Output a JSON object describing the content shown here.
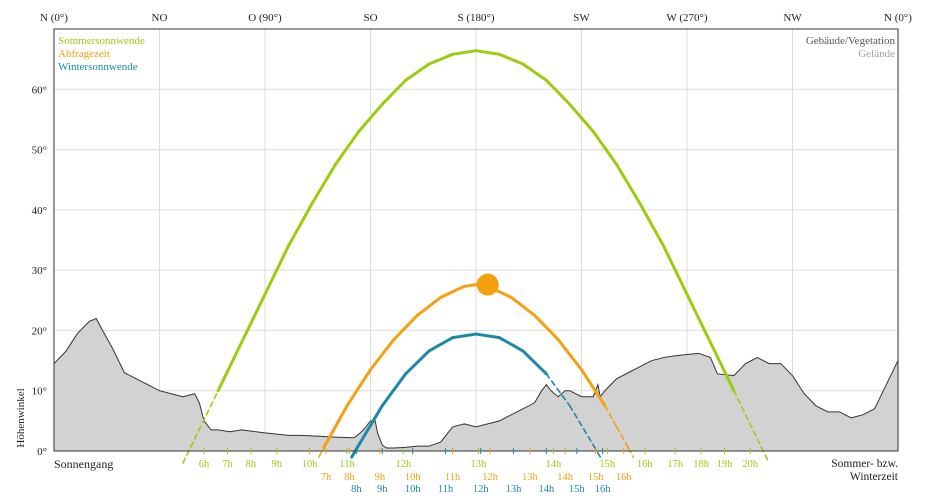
{
  "chart_data": {
    "type": "line",
    "xlabel": "",
    "ylabel": "Höhenwinkel",
    "xlim": [
      0,
      360
    ],
    "ylim": [
      0,
      70
    ],
    "y_ticks": [
      0,
      10,
      20,
      30,
      40,
      50,
      60
    ],
    "y_tick_labels": [
      "0°",
      "10°",
      "20°",
      "30°",
      "40°",
      "50°",
      "60°"
    ],
    "x_ticks": [
      0,
      45,
      90,
      135,
      180,
      225,
      270,
      315,
      360
    ],
    "x_tick_labels": [
      "N (0°)",
      "NO",
      "O (90°)",
      "SO",
      "S (180°)",
      "SW",
      "W (270°)",
      "NW",
      "N (0°)"
    ],
    "grid": true,
    "legend_left": [
      {
        "name": "Sommersonnwende",
        "color": "#9acd0e"
      },
      {
        "name": "Abfragezeit",
        "color": "#f5a00f"
      },
      {
        "name": "Wintersonnwende",
        "color": "#1a8aa8"
      }
    ],
    "legend_right": [
      {
        "name": "Gebäude/Vegetation",
        "color": "#555555"
      },
      {
        "name": "Gelände",
        "color": "#a0a0a0"
      }
    ],
    "bottom_left_label": "Sonnengang",
    "bottom_right_label": "Sommer- bzw. Winterzeit",
    "series": [
      {
        "name": "Sommersonnwende",
        "color": "#9acd0e",
        "x": [
          55,
          60,
          70,
          80,
          90,
          100,
          110,
          120,
          130,
          140,
          150,
          160,
          170,
          180,
          190,
          200,
          210,
          220,
          230,
          240,
          250,
          260,
          270,
          280,
          290,
          300,
          305
        ],
        "y": [
          -2,
          2,
          10,
          18,
          26,
          34,
          41,
          47.5,
          53,
          57.5,
          61.5,
          64.2,
          65.8,
          66.4,
          65.8,
          64.2,
          61.5,
          57.5,
          53,
          47.5,
          41,
          34,
          26,
          18,
          10,
          2,
          -2
        ],
        "dashed_below": [
          [
            55,
            66
          ],
          [
            289,
            305
          ]
        ]
      },
      {
        "name": "Abfragezeit",
        "color": "#f5a00f",
        "x": [
          113,
          115,
          125,
          135,
          145,
          155,
          165,
          175,
          180,
          185,
          195,
          205,
          215,
          225,
          235,
          240,
          245,
          247
        ],
        "y": [
          -1,
          0.5,
          7.5,
          13.5,
          18.5,
          22.5,
          25.5,
          27.3,
          27.6,
          27.3,
          25.5,
          22.5,
          18.5,
          13.5,
          7.5,
          4,
          0.5,
          -1
        ],
        "dashed_below": [
          [
            113,
            115
          ],
          [
            232,
            247
          ]
        ]
      },
      {
        "name": "Wintersonnwende",
        "color": "#1a8aa8",
        "x": [
          127,
          130,
          140,
          150,
          160,
          170,
          180,
          190,
          200,
          210,
          220,
          230,
          233
        ],
        "y": [
          -1,
          1,
          7.5,
          12.8,
          16.6,
          18.8,
          19.4,
          18.8,
          16.6,
          12.8,
          7.5,
          1,
          -1
        ],
        "dashed_below": [
          [
            127,
            128
          ],
          [
            215,
            233
          ]
        ]
      }
    ],
    "sun_position": {
      "azimuth": 185,
      "elevation": 27.6,
      "color": "#f5a00f"
    },
    "horizon_buildings": {
      "x": [
        0,
        5,
        10,
        15,
        17,
        18,
        20,
        25,
        30,
        35,
        40,
        45,
        50,
        55,
        60,
        62,
        64,
        67,
        70,
        75,
        80,
        90,
        95,
        100,
        105,
        110,
        120,
        128,
        130,
        132,
        135,
        137,
        138,
        140,
        141,
        142,
        145,
        150,
        155,
        160,
        165,
        168,
        170,
        175,
        180,
        185,
        190,
        195,
        200,
        205,
        208,
        210,
        212,
        215,
        218,
        220,
        225,
        230,
        232,
        233,
        235,
        240,
        245,
        250,
        255,
        260,
        265,
        270,
        275,
        280,
        283,
        290,
        295,
        300,
        305,
        310,
        315,
        320,
        325,
        330,
        335,
        340,
        345,
        350,
        355,
        360
      ],
      "y": [
        14.5,
        16.5,
        19.5,
        21.5,
        21.8,
        22,
        20.5,
        17,
        13,
        12,
        11,
        10,
        9.5,
        9,
        9.5,
        8,
        5,
        3.5,
        3.5,
        3.2,
        3.5,
        3,
        2.8,
        2.6,
        2.6,
        2.5,
        2.3,
        2.2,
        2.8,
        3.5,
        5,
        5,
        3,
        1,
        0.7,
        0.5,
        0.5,
        0.6,
        0.8,
        0.8,
        1.5,
        3,
        4,
        4.5,
        4,
        4.5,
        5,
        6,
        7,
        8,
        10,
        11,
        10,
        9,
        10,
        10,
        9,
        9,
        11,
        9,
        10,
        12,
        13,
        14,
        15,
        15.5,
        15.8,
        16,
        16.2,
        15.5,
        12.8,
        12.5,
        14.5,
        15.5,
        14.5,
        14.5,
        12.5,
        9.5,
        7.5,
        6.5,
        6.5,
        5.5,
        6,
        7,
        11,
        15
      ]
    },
    "horizon_terrain": {
      "x": [
        0,
        10,
        20,
        30,
        40,
        50,
        60,
        70,
        80,
        90,
        100,
        110,
        120,
        130,
        140,
        150,
        160,
        170,
        180,
        190,
        200,
        210,
        220,
        230,
        240,
        250,
        260,
        270,
        280,
        290,
        300,
        310,
        320,
        330,
        340,
        350,
        360
      ],
      "y": [
        2.2,
        1.8,
        2,
        1.8,
        1.5,
        1.6,
        2,
        1.2,
        1.5,
        1.3,
        1.2,
        1,
        0.8,
        0.6,
        0.5,
        0.4,
        0.4,
        0.5,
        0.6,
        0.8,
        1,
        1.5,
        2.5,
        4,
        5.5,
        6.5,
        7,
        7.5,
        7.8,
        7.8,
        7.5,
        7,
        6.5,
        6,
        5,
        3.5,
        2.5
      ]
    },
    "hour_labels_summer": [
      {
        "label": "6h",
        "az": 64
      },
      {
        "label": "7h",
        "az": 74
      },
      {
        "label": "8h",
        "az": 84
      },
      {
        "label": "9h",
        "az": 95
      },
      {
        "label": "10h",
        "az": 109
      },
      {
        "label": "11h",
        "az": 125
      },
      {
        "label": "12h",
        "az": 149
      },
      {
        "label": "13h",
        "az": 181
      },
      {
        "label": "14h",
        "az": 213
      },
      {
        "label": "15h",
        "az": 236
      },
      {
        "label": "16h",
        "az": 252
      },
      {
        "label": "17h",
        "az": 265
      },
      {
        "label": "18h",
        "az": 276
      },
      {
        "label": "19h",
        "az": 286
      },
      {
        "label": "20h",
        "az": 297
      }
    ],
    "hour_labels_query": [
      {
        "label": "7h",
        "az": 116
      },
      {
        "label": "8h",
        "az": 126
      },
      {
        "label": "9h",
        "az": 139
      },
      {
        "label": "10h",
        "az": 153
      },
      {
        "label": "11h",
        "az": 170
      },
      {
        "label": "12h",
        "az": 186
      },
      {
        "label": "13h",
        "az": 203
      },
      {
        "label": "14h",
        "az": 218
      },
      {
        "label": "15h",
        "az": 231
      },
      {
        "label": "16h",
        "az": 243
      }
    ],
    "hour_labels_winter": [
      {
        "label": "8h",
        "az": 129
      },
      {
        "label": "9h",
        "az": 140
      },
      {
        "label": "10h",
        "az": 153
      },
      {
        "label": "11h",
        "az": 167
      },
      {
        "label": "12h",
        "az": 182
      },
      {
        "label": "13h",
        "az": 196
      },
      {
        "label": "14h",
        "az": 210
      },
      {
        "label": "15h",
        "az": 223
      },
      {
        "label": "16h",
        "az": 234
      }
    ]
  }
}
